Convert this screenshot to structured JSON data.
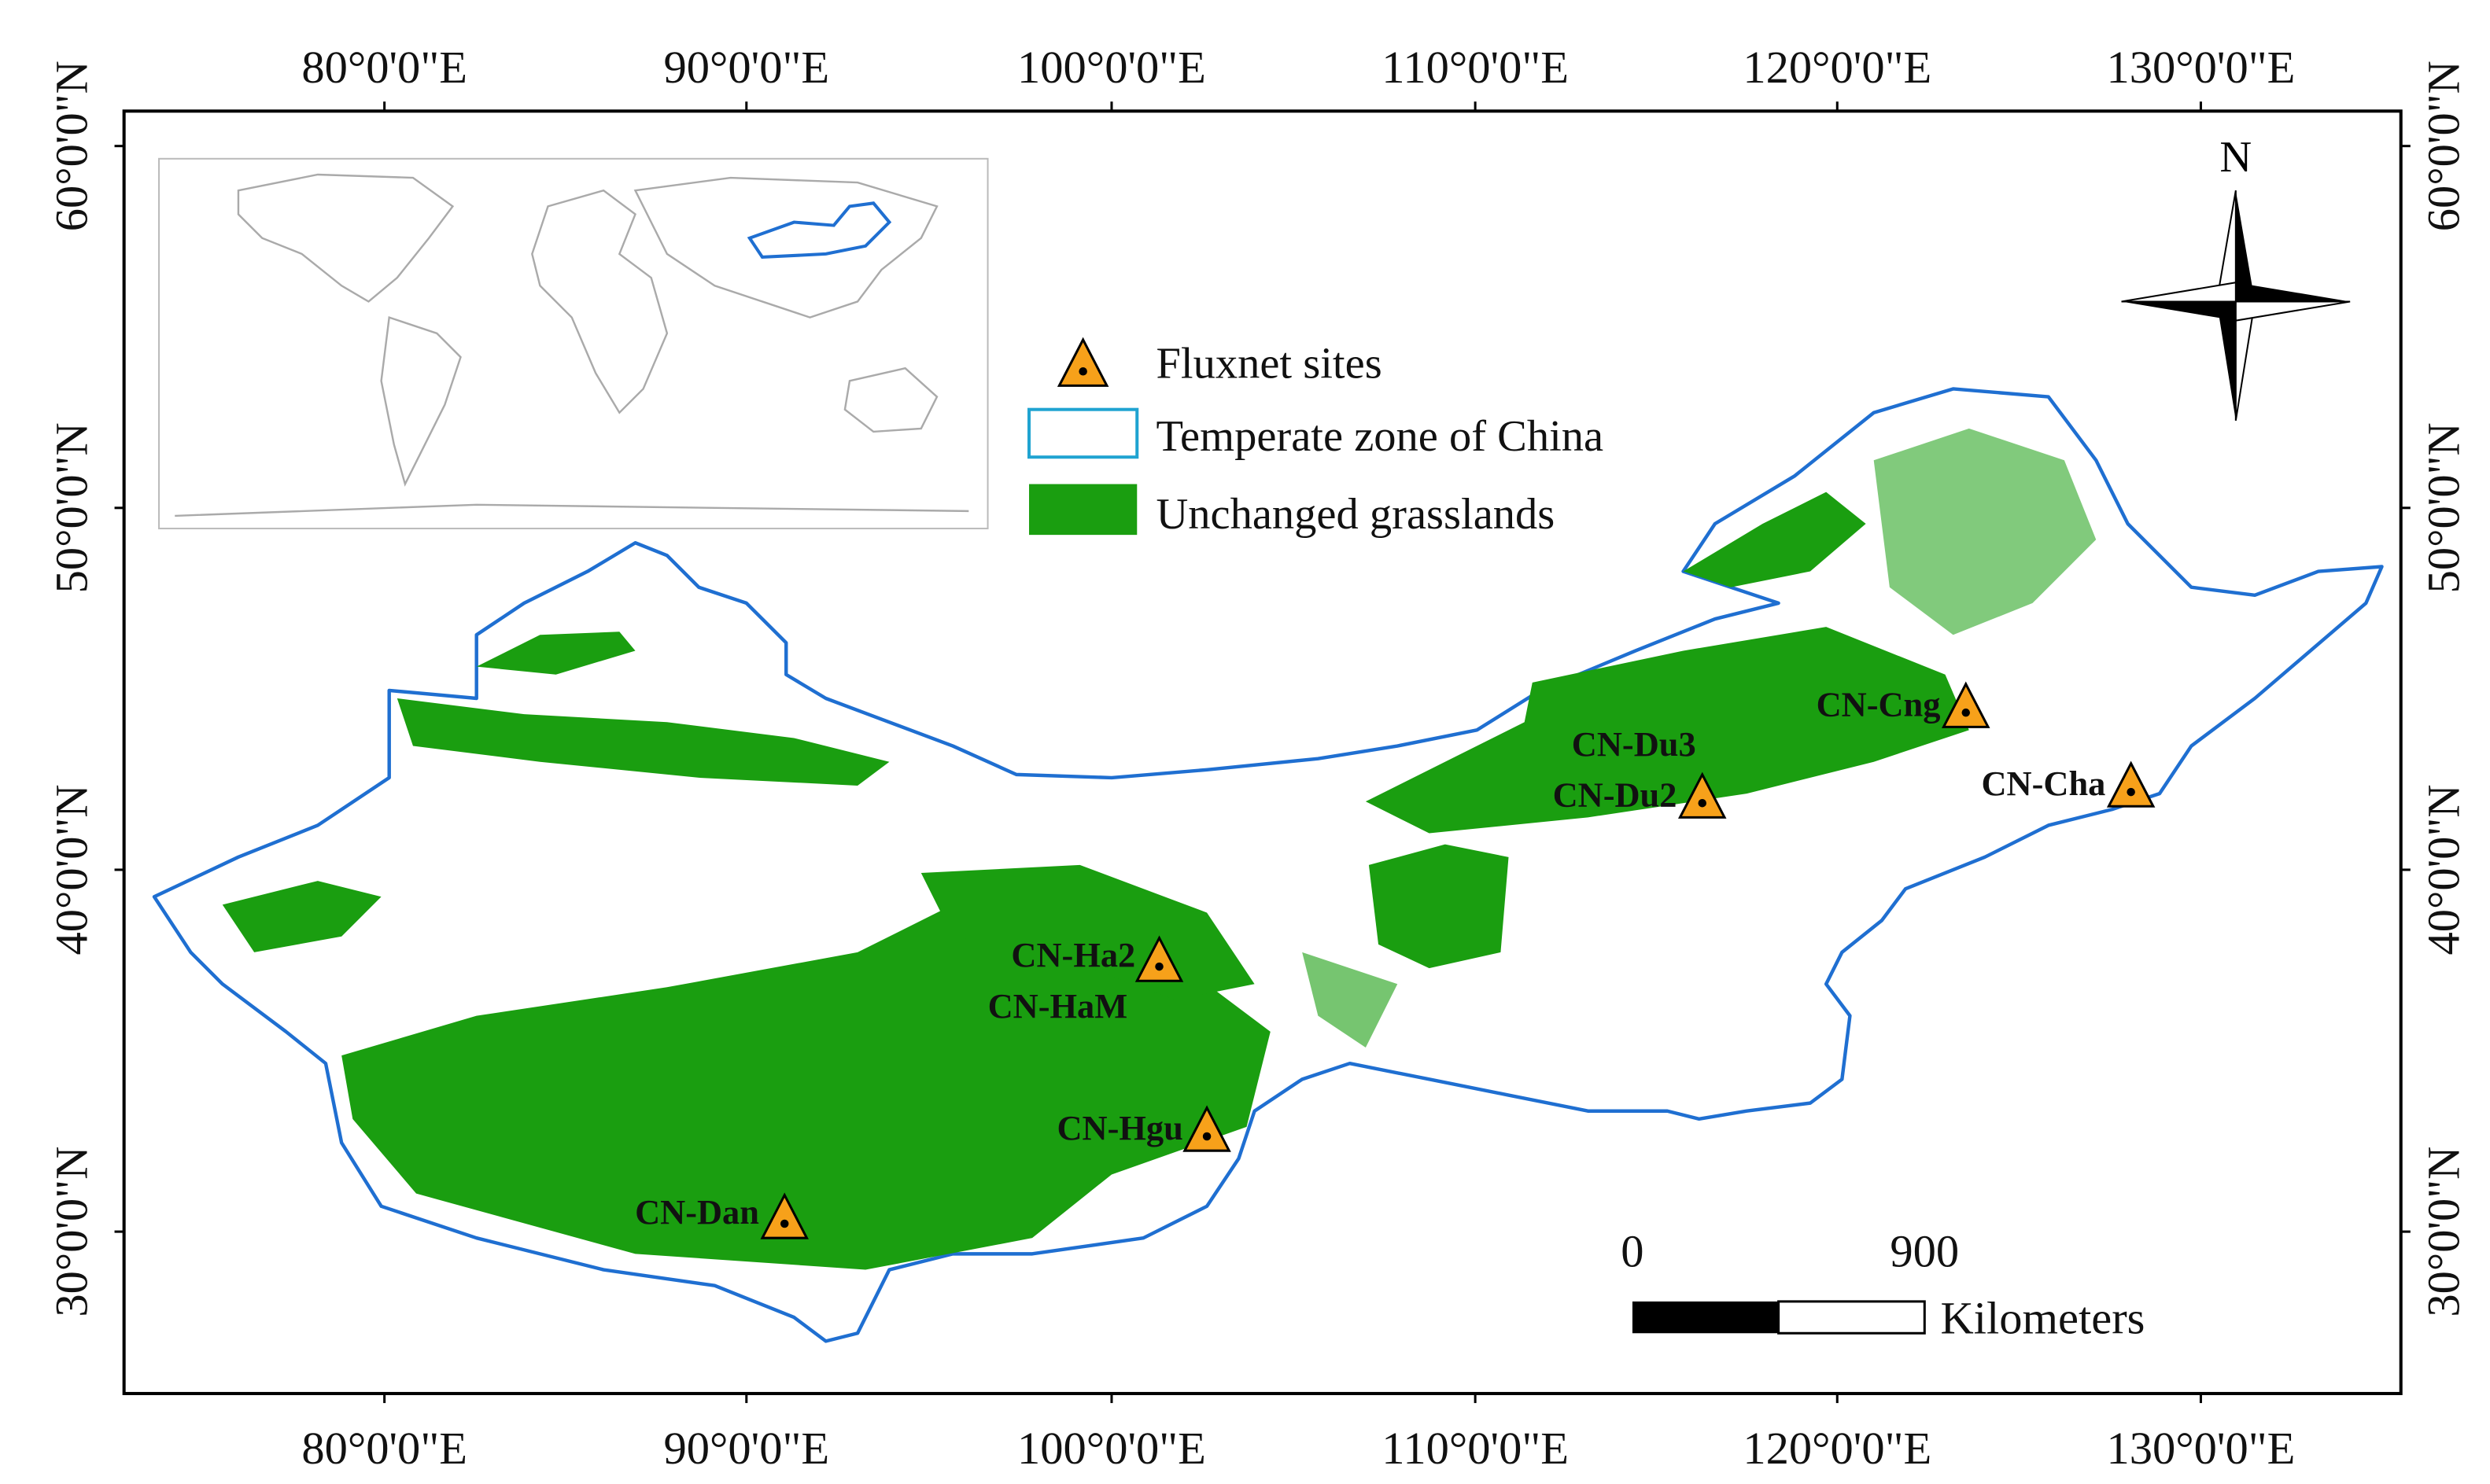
{
  "map": {
    "longitude_labels": [
      "80°0'0\"E",
      "90°0'0\"E",
      "100°0'0\"E",
      "110°0'0\"E",
      "120°0'0\"E",
      "130°0'0\"E"
    ],
    "latitude_labels": [
      "60°0'0\"N",
      "50°0'0\"N",
      "40°0'0\"N",
      "30°0'0\"N"
    ],
    "north_label": "N",
    "legend": [
      "Fluxnet sites",
      "Temperate zone of China",
      "Unchanged grasslands"
    ],
    "sites": [
      "CN-Cng",
      "CN-Cha",
      "CN-Du3",
      "CN-Du2",
      "CN-Ha2",
      "CN-HaM",
      "CN-Hgu",
      "CN-Dan"
    ],
    "scale_bar": {
      "labels": [
        0,
        900
      ],
      "unit": "Kilometers"
    }
  }
}
